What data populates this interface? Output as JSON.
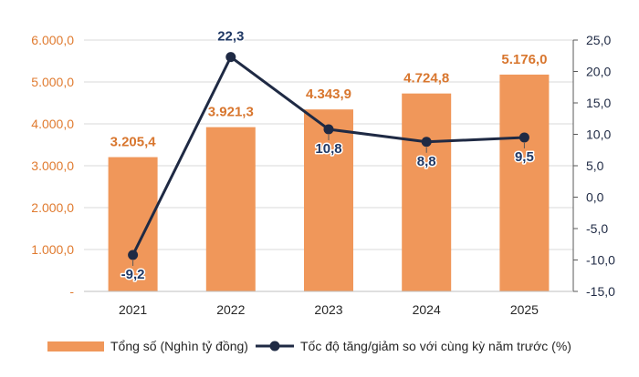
{
  "chart_data": {
    "type": "bar",
    "categories": [
      "2021",
      "2022",
      "2023",
      "2024",
      "2025"
    ],
    "series": [
      {
        "name": "Tổng số (Nghìn tỷ đồng)",
        "type": "bar",
        "axis": "left",
        "color": "#f0975a",
        "values": [
          3205.4,
          3921.3,
          4343.9,
          4724.8,
          5176.0
        ],
        "labels": [
          "3.205,4",
          "3.921,3",
          "4.343,9",
          "4.724,8",
          "5.176,0"
        ]
      },
      {
        "name": "Tốc độ tăng/giảm so với cùng kỳ năm trước (%)",
        "type": "line",
        "axis": "right",
        "color": "#1f2a44",
        "values": [
          -9.2,
          22.3,
          10.8,
          8.8,
          9.5
        ],
        "labels": [
          "-9,2",
          "22,3",
          "10,8",
          "8,8",
          "9,5"
        ]
      }
    ],
    "y_left": {
      "lim": [
        0,
        6000
      ],
      "ticks": [
        0,
        1000,
        2000,
        3000,
        4000,
        5000,
        6000
      ],
      "tick_labels": [
        "-",
        "1.000,0",
        "2.000,0",
        "3.000,0",
        "4.000,0",
        "5.000,0",
        "6.000,0"
      ]
    },
    "y_right": {
      "lim": [
        -15,
        25
      ],
      "ticks": [
        -15,
        -10,
        -5,
        0,
        5,
        10,
        15,
        20,
        25
      ],
      "tick_labels": [
        "-15,0",
        "-10,0",
        "-5,0",
        "0,0",
        "5,0",
        "10,0",
        "15,0",
        "20,0",
        "25,0"
      ]
    },
    "grid": true,
    "legend_position": "bottom"
  }
}
